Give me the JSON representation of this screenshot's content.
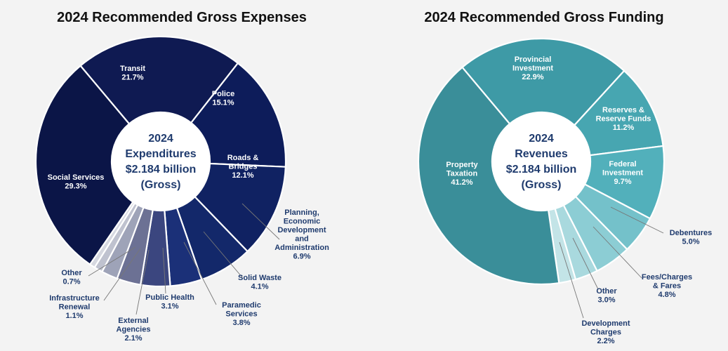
{
  "chart_data": [
    {
      "type": "pie",
      "title": "2024 Recommended Gross Expenses",
      "center_text": [
        "2024",
        "Expenditures",
        "$2.184 billion",
        "(Gross)"
      ],
      "slices": [
        {
          "label": "Transit",
          "value": 21.7,
          "display": "21.7%",
          "color": "#0f1a52"
        },
        {
          "label": "Police",
          "value": 15.1,
          "display": "15.1%",
          "color": "#0d1c5a"
        },
        {
          "label": "Roads & Bridges",
          "value": 12.1,
          "display": "12.1%",
          "color": "#102262"
        },
        {
          "label": "Planning, Economic Development and Administration",
          "value": 6.9,
          "display": "6.9%",
          "color": "#13286a"
        },
        {
          "label": "Solid Waste",
          "value": 4.1,
          "display": "4.1%",
          "color": "#1b3078"
        },
        {
          "label": "Paramedic Services",
          "value": 3.8,
          "display": "3.8%",
          "color": "#3b467f"
        },
        {
          "label": "Public Health",
          "value": 3.1,
          "display": "3.1%",
          "color": "#6c7194"
        },
        {
          "label": "External Agencies",
          "value": 2.1,
          "display": "2.1%",
          "color": "#9ea3b8"
        },
        {
          "label": "Infrastructure Renewal",
          "value": 1.1,
          "display": "1.1%",
          "color": "#bfc2cf"
        },
        {
          "label": "Other",
          "value": 0.7,
          "display": "0.7%",
          "color": "#d6d8e0"
        },
        {
          "label": "Social Services",
          "value": 29.3,
          "display": "29.3%",
          "color": "#0b1547"
        }
      ]
    },
    {
      "type": "pie",
      "title": "2024 Recommended Gross Funding",
      "center_text": [
        "2024",
        "Revenues",
        "$2.184 billion",
        "(Gross)"
      ],
      "slices": [
        {
          "label": "Provincial Investment",
          "value": 22.9,
          "display": "22.9%",
          "color": "#3e9aa6"
        },
        {
          "label": "Reserves & Reserve Funds",
          "value": 11.2,
          "display": "11.2%",
          "color": "#47a6b1"
        },
        {
          "label": "Federal Investment",
          "value": 9.7,
          "display": "9.7%",
          "color": "#52b0bb"
        },
        {
          "label": "Debentures",
          "value": 5.0,
          "display": "5.0%",
          "color": "#74c1ca"
        },
        {
          "label": "Fees/Charges & Fares",
          "value": 4.8,
          "display": "4.8%",
          "color": "#8ccdd4"
        },
        {
          "label": "Other",
          "value": 3.0,
          "display": "3.0%",
          "color": "#a9d9de"
        },
        {
          "label": "Development Charges",
          "value": 2.2,
          "display": "2.2%",
          "color": "#c3e4e7"
        },
        {
          "label": "Property Taxation",
          "value": 41.2,
          "display": "41.2%",
          "color": "#3a8e99"
        }
      ]
    }
  ]
}
